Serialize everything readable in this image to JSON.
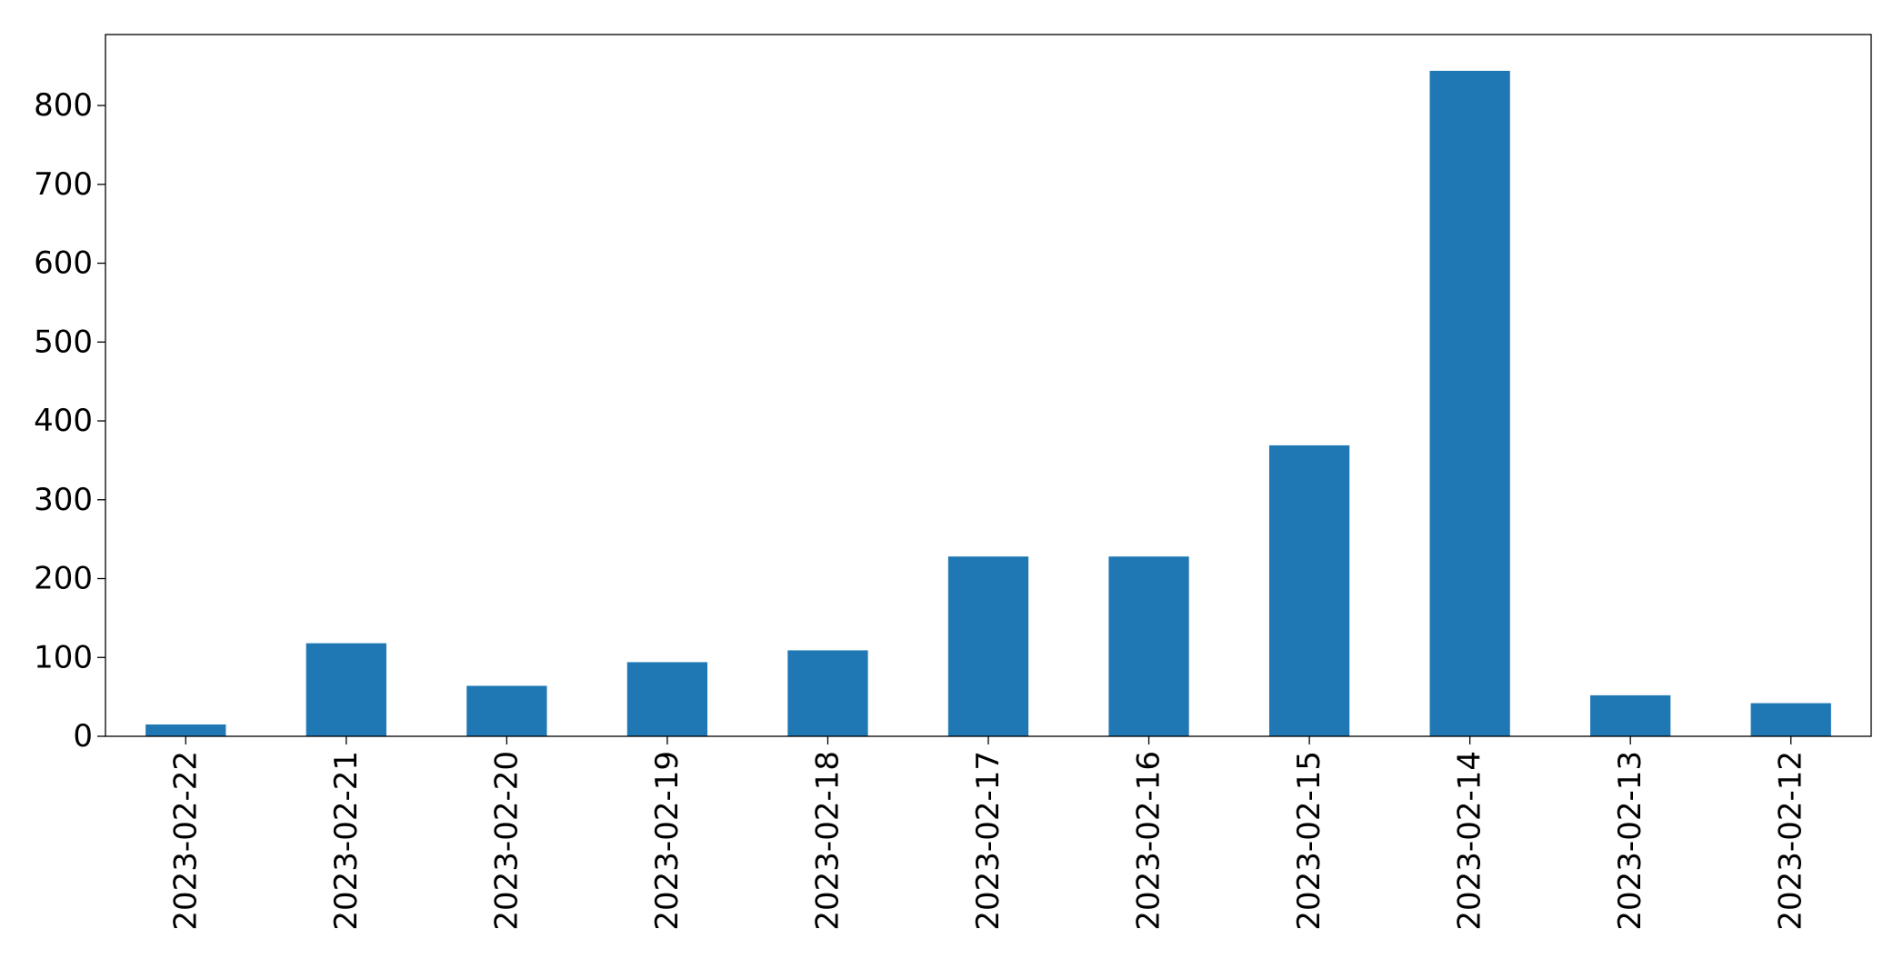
{
  "chart_data": {
    "type": "bar",
    "title": "",
    "xlabel": "",
    "ylabel": "",
    "categories": [
      "2023-02-22",
      "2023-02-21",
      "2023-02-20",
      "2023-02-19",
      "2023-02-18",
      "2023-02-17",
      "2023-02-16",
      "2023-02-15",
      "2023-02-14",
      "2023-02-13",
      "2023-02-12"
    ],
    "values": [
      15,
      118,
      64,
      94,
      109,
      228,
      228,
      369,
      844,
      52,
      42
    ],
    "yticks": [
      0,
      100,
      200,
      300,
      400,
      500,
      600,
      700,
      800
    ],
    "ylim": [
      0,
      890
    ],
    "grid": false,
    "legend": "none",
    "bar_color": "#1f77b4"
  }
}
